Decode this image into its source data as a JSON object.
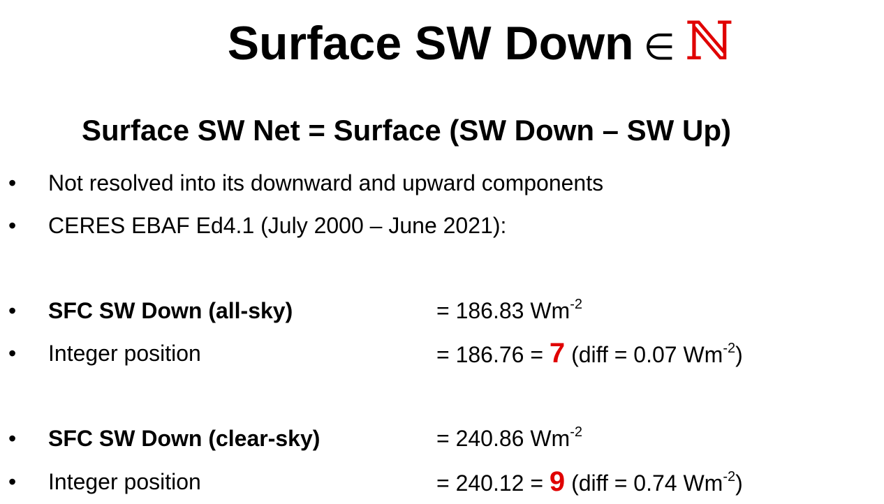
{
  "title": {
    "text": "Surface SW Down",
    "symbol": "∈",
    "set": "ℕ"
  },
  "subtitle": "Surface SW Net = Surface (SW Down – SW Up)",
  "bullets": [
    "Not resolved into its downward and upward components",
    "CERES EBAF Ed4.1 (July 2000 – June 2021):"
  ],
  "rows": [
    {
      "label": "SFC SW Down (all-sky)",
      "bold": true,
      "prefix": "= 186.83 Wm",
      "sup": "-2"
    },
    {
      "label": "Integer position",
      "bold": false,
      "prefix": "= 186.76 = ",
      "highlight": "7",
      "suffix": " (diff = 0.07 Wm",
      "sup": "-2",
      "close": ")"
    },
    {
      "label": "SFC SW Down (clear-sky)",
      "bold": true,
      "prefix": "= 240.86 Wm",
      "sup": "-2"
    },
    {
      "label": "Integer position",
      "bold": false,
      "prefix": "= 240.12 = ",
      "highlight": "9",
      "suffix": " (diff = 0.74 Wm",
      "sup": "-2",
      "close": ")"
    }
  ]
}
